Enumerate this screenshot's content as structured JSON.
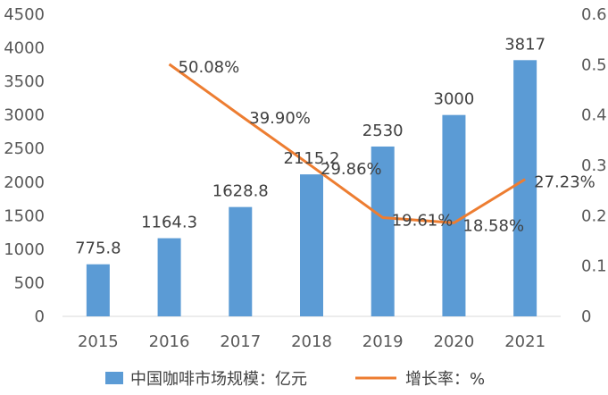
{
  "chart_data": {
    "type": "bar",
    "categories": [
      "2015",
      "2016",
      "2017",
      "2018",
      "2019",
      "2020",
      "2021"
    ],
    "series": [
      {
        "name": "中国咖啡市场规模：亿元",
        "type": "bar",
        "axis": "left",
        "values": [
          775.8,
          1164.3,
          1628.8,
          2115.2,
          2530,
          3000,
          3817
        ],
        "labels": [
          "775.8",
          "1164.3",
          "1628.8",
          "2115.2",
          "2530",
          "3000",
          "3817"
        ],
        "color": "#5B9BD5"
      },
      {
        "name": "增长率：%",
        "type": "line",
        "axis": "right",
        "values": [
          null,
          0.5008,
          0.399,
          0.2986,
          0.1961,
          0.1858,
          0.2723
        ],
        "labels": [
          "",
          "50.08%",
          "39.90%",
          "29.86%",
          "19.61%",
          "18.58%",
          "27.23%"
        ],
        "color": "#ED7D31"
      }
    ],
    "y_left": {
      "min": 0,
      "max": 4500,
      "ticks": [
        0,
        500,
        1000,
        1500,
        2000,
        2500,
        3000,
        3500,
        4000,
        4500
      ]
    },
    "y_right": {
      "min": 0,
      "max": 0.6,
      "ticks": [
        "0",
        "0.1",
        "0.2",
        "0.3",
        "0.4",
        "0.5",
        "0.6"
      ]
    },
    "grid": false,
    "legend_position": "bottom"
  }
}
